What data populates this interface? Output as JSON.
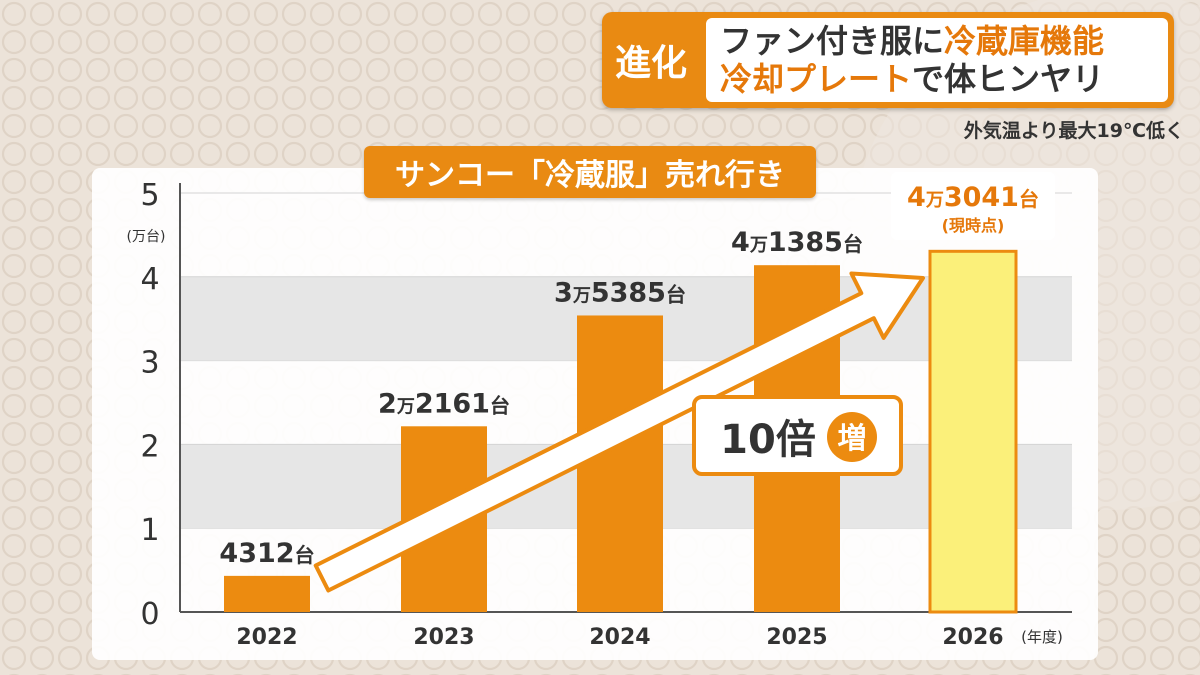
{
  "header": {
    "tag": "進化",
    "line1_a": "ファン付き服に",
    "line1_b": "冷蔵庫機能",
    "line2_a": "冷却プレート",
    "line2_b": "で体ヒンヤリ",
    "note": "外気温より最大19℃低く"
  },
  "colors": {
    "accent": "#e98a12",
    "bar": "#ec8b10",
    "bar_highlight": "#fbf07a",
    "text": "#333333"
  },
  "chart_data": {
    "type": "bar",
    "title": "サンコー「冷蔵服」売れ行き",
    "ylabel": "(万台)",
    "xlabel": "(年度)",
    "ylim": [
      0,
      5
    ],
    "yticks": [
      "0",
      "1",
      "2",
      "3",
      "4",
      "5"
    ],
    "categories": [
      "2022",
      "2023",
      "2024",
      "2025",
      "2026"
    ],
    "values": [
      0.4312,
      2.2161,
      3.5385,
      4.1385,
      4.3041
    ],
    "labels": [
      {
        "num": "4312",
        "unit": "台"
      },
      {
        "man": "2",
        "num": "2161",
        "unit": "台"
      },
      {
        "man": "3",
        "num": "5385",
        "unit": "台"
      },
      {
        "man": "4",
        "num": "1385",
        "unit": "台"
      },
      {
        "man": "4",
        "num": "3041",
        "unit": "台"
      }
    ],
    "man_char": "万",
    "highlight_index": 4,
    "highlight_sublabel": "(現時点)",
    "annotation": {
      "text": "10倍",
      "badge": "増"
    }
  }
}
